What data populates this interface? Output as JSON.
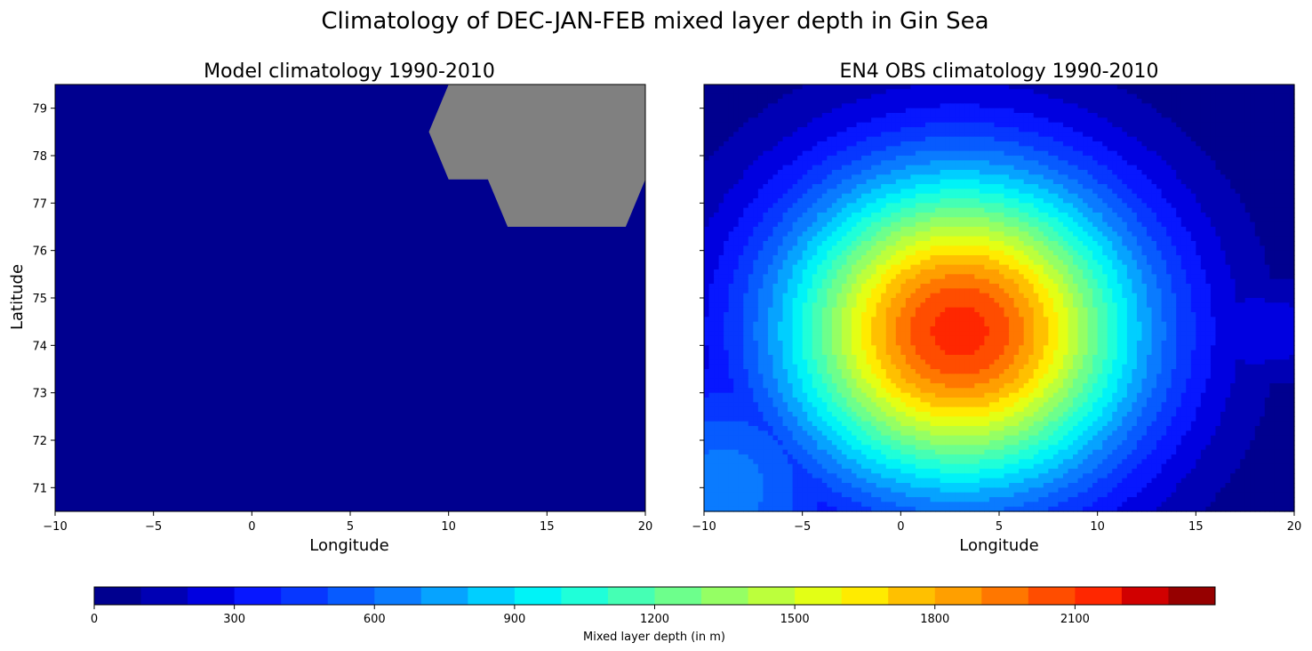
{
  "figure": {
    "title": "Climatology of DEC-JAN-FEB mixed layer depth in Gin Sea"
  },
  "colors": {
    "land": "#808080",
    "levels": [
      "#00008f",
      "#0000b4",
      "#0000e0",
      "#0717ff",
      "#0737ff",
      "#075bff",
      "#0a7bff",
      "#06a3ff",
      "#00cfff",
      "#00f3f7",
      "#1fffd9",
      "#45ffb4",
      "#6dff8c",
      "#95ff64",
      "#bcff3c",
      "#e3ff15",
      "#ffeb00",
      "#ffc000",
      "#ff9f00",
      "#ff7700",
      "#ff4d00",
      "#ff2700",
      "#d10000",
      "#960000"
    ]
  },
  "chart_data": [
    {
      "type": "heatmap",
      "title": "Model climatology 1990-2010",
      "xlabel": "Longitude",
      "ylabel": "Latitude",
      "xlim": [
        -10,
        20
      ],
      "ylim": [
        70.5,
        79.5
      ],
      "xticks": [
        -10,
        -5,
        0,
        5,
        10,
        15,
        20
      ],
      "yticks": [
        71,
        72,
        73,
        74,
        75,
        76,
        77,
        78,
        79
      ],
      "field": "uniform mixed layer depth 0-100 m",
      "value": 50,
      "land_mask": [
        [
          10,
          79.5
        ],
        [
          20,
          79.5
        ],
        [
          20,
          77.5
        ],
        [
          19,
          76.5
        ],
        [
          13,
          76.5
        ],
        [
          12,
          77.5
        ],
        [
          10,
          77.5
        ],
        [
          9,
          78.5
        ]
      ]
    },
    {
      "type": "heatmap",
      "title": "EN4 OBS climatology 1990-2010",
      "xlabel": "Longitude",
      "ylabel": "",
      "xlim": [
        -10,
        20
      ],
      "ylim": [
        70.5,
        79.5
      ],
      "xticks": [
        -10,
        -5,
        0,
        5,
        10,
        15,
        20
      ],
      "yticks": [
        71,
        72,
        73,
        74,
        75,
        76,
        77,
        78,
        79
      ],
      "field": "gaussian-like mixed layer depth maximum",
      "peak_value_m": 2150,
      "peak_center": [
        3,
        74.3
      ],
      "peak_spread_deg": [
        6.5,
        2.4
      ]
    }
  ],
  "colorbar": {
    "label": "Mixed layer depth (in m)",
    "min": 0,
    "max": 2200,
    "step": 100,
    "ticks": [
      0,
      300,
      600,
      900,
      1200,
      1500,
      1800,
      2100
    ]
  }
}
